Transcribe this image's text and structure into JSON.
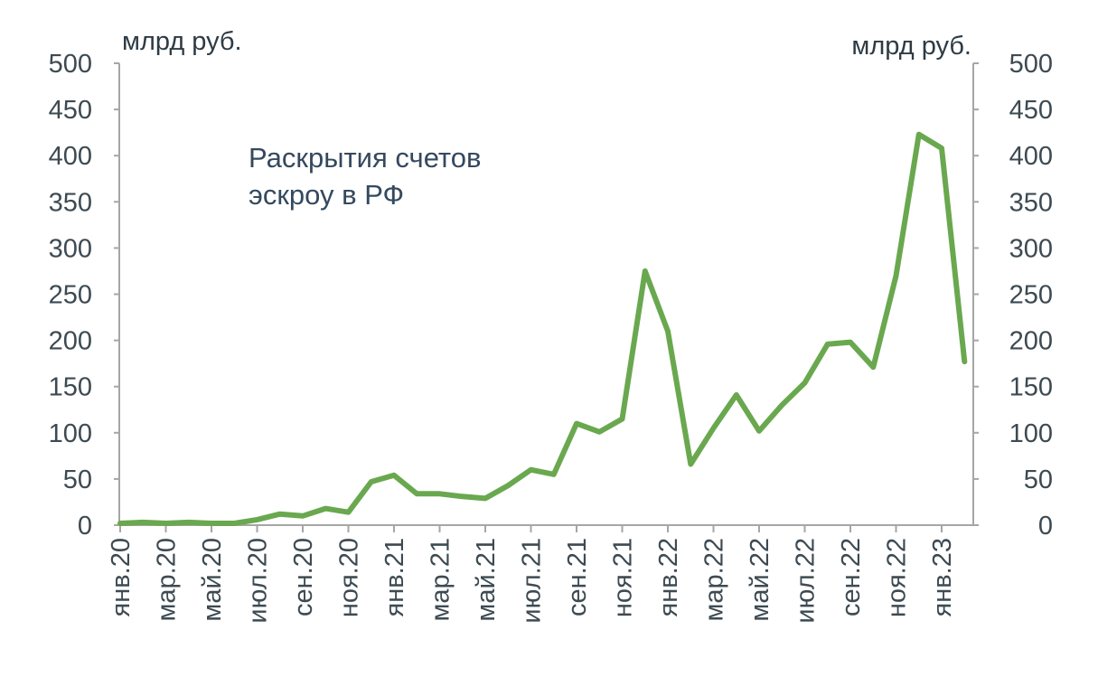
{
  "chart_data": {
    "type": "line",
    "y_unit_left": "млрд руб.",
    "y_unit_right": "млрд руб.",
    "annotation": [
      "Раскрытия счетов",
      "эскроу в РФ"
    ],
    "ylim": [
      0,
      500
    ],
    "yticks": [
      0,
      50,
      100,
      150,
      200,
      250,
      300,
      350,
      400,
      450,
      500
    ],
    "dual_y_axis": true,
    "grid": false,
    "legend": "none",
    "x_tick_labels": [
      "янв.20",
      "мар.20",
      "май.20",
      "июл.20",
      "сен.20",
      "ноя.20",
      "янв.21",
      "мар.21",
      "май.21",
      "июл.21",
      "сен.21",
      "ноя.21",
      "янв.22",
      "мар.22",
      "май.22",
      "июл.22",
      "сен.22",
      "ноя.22",
      "янв.23"
    ],
    "x": [
      "янв.20",
      "фев.20",
      "мар.20",
      "апр.20",
      "май.20",
      "июн.20",
      "июл.20",
      "авг.20",
      "сен.20",
      "окт.20",
      "ноя.20",
      "дек.20",
      "янв.21",
      "фев.21",
      "мар.21",
      "апр.21",
      "май.21",
      "июн.21",
      "июл.21",
      "авг.21",
      "сен.21",
      "окт.21",
      "ноя.21",
      "дек.21",
      "янв.22",
      "фев.22",
      "мар.22",
      "апр.22",
      "май.22",
      "июн.22",
      "июл.22",
      "авг.22",
      "сен.22",
      "окт.22",
      "ноя.22",
      "дек.22",
      "янв.23",
      "фев.23"
    ],
    "series": [
      {
        "color": "#6aa84f",
        "values": [
          2,
          3,
          2,
          3,
          2,
          2,
          6,
          12,
          10,
          18,
          14,
          47,
          54,
          34,
          34,
          31,
          29,
          43,
          60,
          55,
          110,
          101,
          115,
          275,
          210,
          66,
          105,
          141,
          102,
          130,
          154,
          196,
          198,
          171,
          270,
          423,
          408,
          177
        ]
      }
    ]
  }
}
